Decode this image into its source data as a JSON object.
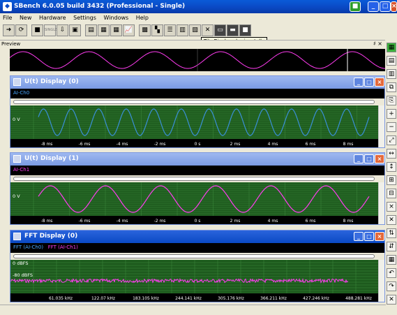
{
  "app": {
    "title": "SBench 6.0.05 build 3432 (Professional - Single)"
  },
  "menu": [
    "File",
    "New",
    "Hardware",
    "Settings",
    "Windows",
    "Help"
  ],
  "toolbar": {
    "tooltip": "Tile Displays horizontally",
    "buttons": [
      {
        "icon": "arrow-right-icon",
        "glyph": "➜"
      },
      {
        "icon": "refresh-icon",
        "glyph": "⟳"
      },
      {
        "icon": "stop-icon",
        "glyph": "■"
      },
      {
        "icon": "single-icon",
        "glyph": "SINGLE"
      },
      {
        "icon": "export-icon",
        "glyph": "⇩"
      },
      {
        "icon": "save-icon",
        "glyph": "▣"
      },
      {
        "icon": "print-icon",
        "glyph": "▤"
      },
      {
        "icon": "table-icon",
        "glyph": "▦"
      },
      {
        "icon": "grid-icon",
        "glyph": "▦"
      },
      {
        "icon": "chart-icon",
        "glyph": "📈"
      },
      {
        "icon": "display-icon",
        "glyph": "▩"
      },
      {
        "icon": "tile-grid-icon",
        "glyph": "▚"
      },
      {
        "icon": "tile-horizontal-icon",
        "glyph": "☰"
      },
      {
        "icon": "tile-vertical-icon",
        "glyph": "▥"
      },
      {
        "icon": "cascade-icon",
        "glyph": "▧"
      },
      {
        "icon": "close-all-icon",
        "glyph": "✕"
      },
      {
        "icon": "window-icon",
        "glyph": "▭"
      },
      {
        "icon": "maximize-icon",
        "glyph": "▬"
      },
      {
        "icon": "fullscreen-icon",
        "glyph": "■"
      }
    ]
  },
  "preview": {
    "label": "Preview",
    "pin": "♯ ×"
  },
  "displays": [
    {
      "title": "U(t) Display (0)",
      "legend": [
        "AI-Ch0"
      ],
      "legend_colors": [
        "#4aa8ff"
      ],
      "level_label": "0 V",
      "x_ticks": [
        "-8 ms",
        "-6 ms",
        "-4 ms",
        "-2 ms",
        "0 s",
        "2 ms",
        "4 ms",
        "6 ms",
        "8 ms"
      ]
    },
    {
      "title": "U(t) Display (1)",
      "legend": [
        "AI-Ch1"
      ],
      "legend_colors": [
        "#ff3cf0"
      ],
      "level_label": "0 V",
      "x_ticks": [
        "-8 ms",
        "-6 ms",
        "-4 ms",
        "-2 ms",
        "0 s",
        "2 ms",
        "4 ms",
        "6 ms",
        "8 ms"
      ]
    },
    {
      "title": "FFT Display (0)",
      "legend": [
        "FFT (AI-Ch0)",
        "FFT (AI-Ch1)"
      ],
      "legend_colors": [
        "#4aa8ff",
        "#ff3cf0"
      ],
      "level_labels": [
        "0 dBFS",
        "-80 dBFS"
      ],
      "x_ticks": [
        "61.035 kHz",
        "122.07 kHz",
        "183.105 kHz",
        "244.141 kHz",
        "305.176 kHz",
        "366.211 kHz",
        "427.246 kHz",
        "488.281 kHz"
      ]
    }
  ],
  "colors": {
    "ch0": "#3a8fd8",
    "ch1": "#ff3cf0",
    "plot_bg": "#1d5a1d",
    "grid": "#3f8a3f"
  }
}
